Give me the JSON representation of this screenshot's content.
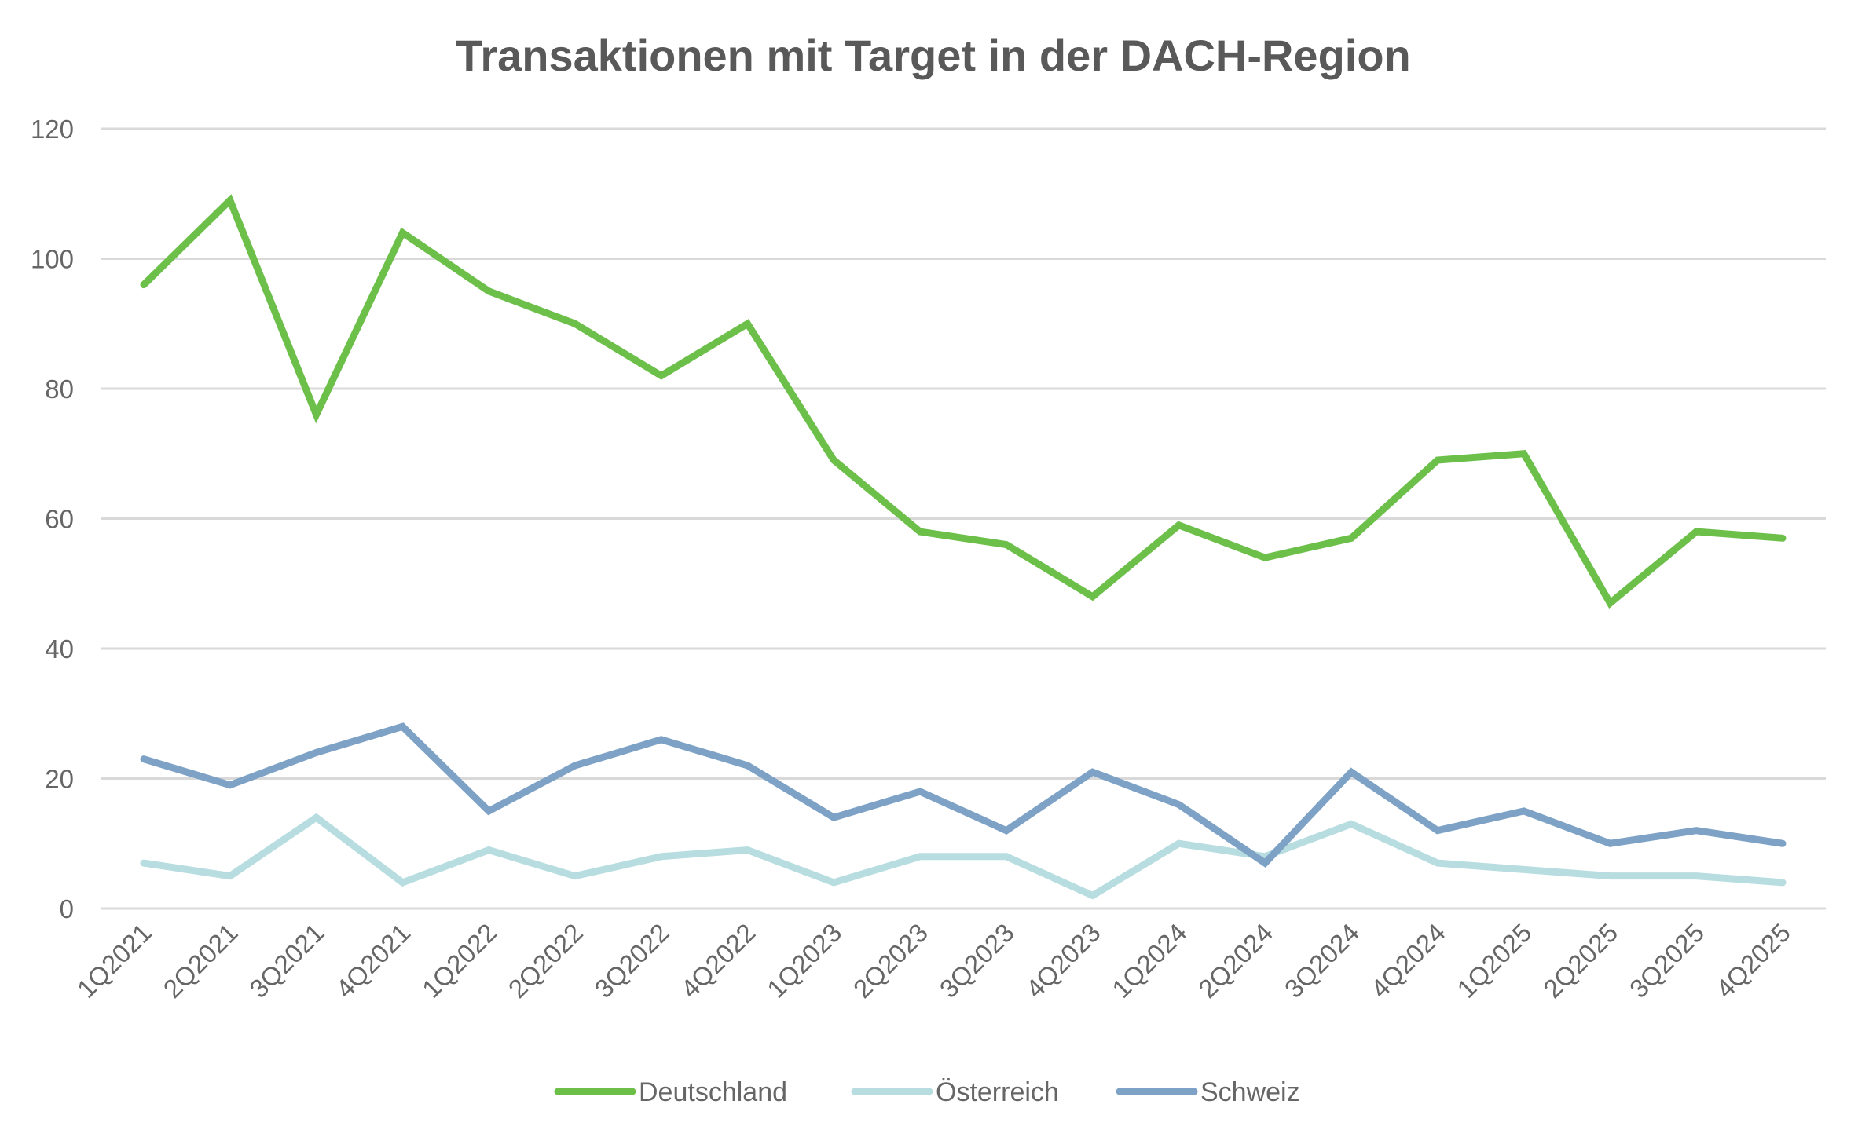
{
  "chart_data": {
    "type": "line",
    "title": "Transaktionen mit Target in der DACH-Region",
    "xlabel": "",
    "ylabel": "",
    "ylim": [
      0,
      120
    ],
    "yticks": [
      0,
      20,
      40,
      60,
      80,
      100,
      120
    ],
    "grid": true,
    "legend_position": "bottom",
    "categories": [
      "1Q2021",
      "2Q2021",
      "3Q2021",
      "4Q2021",
      "1Q2022",
      "2Q2022",
      "3Q2022",
      "4Q2022",
      "1Q2023",
      "2Q2023",
      "3Q2023",
      "4Q2023",
      "1Q2024",
      "2Q2024",
      "3Q2024",
      "4Q2024",
      "1Q2025",
      "2Q2025",
      "3Q2025",
      "4Q2025"
    ],
    "series": [
      {
        "name": "Deutschland",
        "color": "#6cc04a",
        "values": [
          96,
          109,
          76,
          104,
          95,
          90,
          82,
          90,
          69,
          58,
          56,
          48,
          59,
          54,
          57,
          69,
          70,
          47,
          58,
          57
        ]
      },
      {
        "name": "Österreich",
        "color": "#b7dde0",
        "values": [
          7,
          5,
          14,
          4,
          9,
          5,
          8,
          9,
          4,
          8,
          8,
          2,
          10,
          8,
          13,
          7,
          6,
          5,
          5,
          4
        ]
      },
      {
        "name": "Schweiz",
        "color": "#7ea2c6",
        "values": [
          23,
          19,
          24,
          28,
          15,
          22,
          26,
          22,
          14,
          18,
          12,
          21,
          16,
          7,
          21,
          12,
          15,
          10,
          12,
          10
        ]
      }
    ]
  }
}
